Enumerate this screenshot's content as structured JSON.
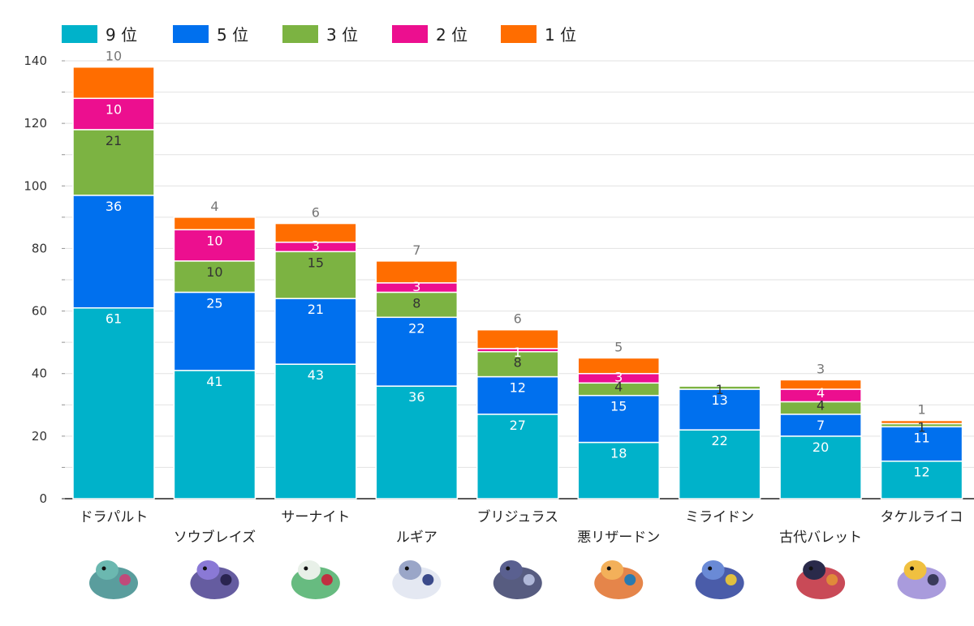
{
  "chart_data": {
    "type": "bar",
    "stacked": true,
    "title": "",
    "xlabel": "",
    "ylabel": "",
    "ylim": [
      0,
      140
    ],
    "yticks": [
      0,
      20,
      40,
      60,
      80,
      100,
      120,
      140
    ],
    "grid": true,
    "legend_position": "top-left",
    "categories": [
      "ドラパルト",
      "ソウブレイズ",
      "サーナイト",
      "ルギア",
      "ブリジュラス",
      "悪リザードン",
      "ミライドン",
      "古代バレット",
      "タケルライコ"
    ],
    "series": [
      {
        "name": "9 位",
        "color": "#00B2CA",
        "label_color": "#ffffff",
        "values": [
          61,
          41,
          43,
          36,
          27,
          18,
          22,
          20,
          12
        ]
      },
      {
        "name": "5 位",
        "color": "#0070EE",
        "label_color": "#ffffff",
        "values": [
          36,
          25,
          21,
          22,
          12,
          15,
          13,
          7,
          11
        ]
      },
      {
        "name": "3 位",
        "color": "#7CB342",
        "label_color": "#333333",
        "values": [
          21,
          10,
          15,
          8,
          8,
          4,
          1,
          4,
          1
        ]
      },
      {
        "name": "2 位",
        "color": "#EC0F8F",
        "label_color": "#ffffff",
        "values": [
          10,
          10,
          3,
          3,
          1,
          3,
          0,
          4,
          0
        ]
      },
      {
        "name": "1 位",
        "color": "#FF6D00",
        "label_color": "#555555",
        "values": [
          10,
          4,
          6,
          7,
          6,
          5,
          0,
          3,
          1
        ]
      }
    ]
  },
  "icons": [
    "dragapult-sprite-icon",
    "ceruledge-sprite-icon",
    "gardevoir-sprite-icon",
    "lugia-sprite-icon",
    "archaludon-sprite-icon",
    "charizard-sprite-icon",
    "miraidon-sprite-icon",
    "roaring-moon-sprite-icon",
    "raging-bolt-sprite-icon"
  ]
}
